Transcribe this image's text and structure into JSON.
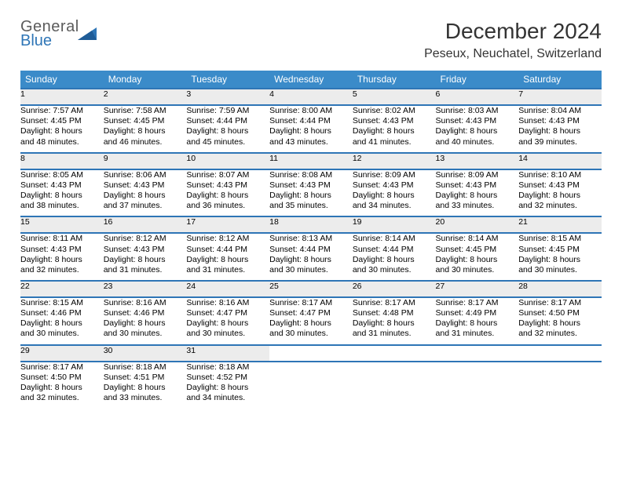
{
  "brand": {
    "line1": "General",
    "line2": "Blue"
  },
  "title": "December 2024",
  "location": "Peseux, Neuchatel, Switzerland",
  "colors": {
    "header_bg": "#3b8bc9",
    "header_text": "#ffffff",
    "row_divider": "#2e75b6",
    "daynum_bg": "#ececec",
    "text": "#000000",
    "brand_gray": "#5b5b5b",
    "brand_blue": "#2e75b6"
  },
  "day_headers": [
    "Sunday",
    "Monday",
    "Tuesday",
    "Wednesday",
    "Thursday",
    "Friday",
    "Saturday"
  ],
  "weeks": [
    [
      {
        "n": "1",
        "sr": "7:57 AM",
        "ss": "4:45 PM",
        "dl": "8 hours and 48 minutes."
      },
      {
        "n": "2",
        "sr": "7:58 AM",
        "ss": "4:45 PM",
        "dl": "8 hours and 46 minutes."
      },
      {
        "n": "3",
        "sr": "7:59 AM",
        "ss": "4:44 PM",
        "dl": "8 hours and 45 minutes."
      },
      {
        "n": "4",
        "sr": "8:00 AM",
        "ss": "4:44 PM",
        "dl": "8 hours and 43 minutes."
      },
      {
        "n": "5",
        "sr": "8:02 AM",
        "ss": "4:43 PM",
        "dl": "8 hours and 41 minutes."
      },
      {
        "n": "6",
        "sr": "8:03 AM",
        "ss": "4:43 PM",
        "dl": "8 hours and 40 minutes."
      },
      {
        "n": "7",
        "sr": "8:04 AM",
        "ss": "4:43 PM",
        "dl": "8 hours and 39 minutes."
      }
    ],
    [
      {
        "n": "8",
        "sr": "8:05 AM",
        "ss": "4:43 PM",
        "dl": "8 hours and 38 minutes."
      },
      {
        "n": "9",
        "sr": "8:06 AM",
        "ss": "4:43 PM",
        "dl": "8 hours and 37 minutes."
      },
      {
        "n": "10",
        "sr": "8:07 AM",
        "ss": "4:43 PM",
        "dl": "8 hours and 36 minutes."
      },
      {
        "n": "11",
        "sr": "8:08 AM",
        "ss": "4:43 PM",
        "dl": "8 hours and 35 minutes."
      },
      {
        "n": "12",
        "sr": "8:09 AM",
        "ss": "4:43 PM",
        "dl": "8 hours and 34 minutes."
      },
      {
        "n": "13",
        "sr": "8:09 AM",
        "ss": "4:43 PM",
        "dl": "8 hours and 33 minutes."
      },
      {
        "n": "14",
        "sr": "8:10 AM",
        "ss": "4:43 PM",
        "dl": "8 hours and 32 minutes."
      }
    ],
    [
      {
        "n": "15",
        "sr": "8:11 AM",
        "ss": "4:43 PM",
        "dl": "8 hours and 32 minutes."
      },
      {
        "n": "16",
        "sr": "8:12 AM",
        "ss": "4:43 PM",
        "dl": "8 hours and 31 minutes."
      },
      {
        "n": "17",
        "sr": "8:12 AM",
        "ss": "4:44 PM",
        "dl": "8 hours and 31 minutes."
      },
      {
        "n": "18",
        "sr": "8:13 AM",
        "ss": "4:44 PM",
        "dl": "8 hours and 30 minutes."
      },
      {
        "n": "19",
        "sr": "8:14 AM",
        "ss": "4:44 PM",
        "dl": "8 hours and 30 minutes."
      },
      {
        "n": "20",
        "sr": "8:14 AM",
        "ss": "4:45 PM",
        "dl": "8 hours and 30 minutes."
      },
      {
        "n": "21",
        "sr": "8:15 AM",
        "ss": "4:45 PM",
        "dl": "8 hours and 30 minutes."
      }
    ],
    [
      {
        "n": "22",
        "sr": "8:15 AM",
        "ss": "4:46 PM",
        "dl": "8 hours and 30 minutes."
      },
      {
        "n": "23",
        "sr": "8:16 AM",
        "ss": "4:46 PM",
        "dl": "8 hours and 30 minutes."
      },
      {
        "n": "24",
        "sr": "8:16 AM",
        "ss": "4:47 PM",
        "dl": "8 hours and 30 minutes."
      },
      {
        "n": "25",
        "sr": "8:17 AM",
        "ss": "4:47 PM",
        "dl": "8 hours and 30 minutes."
      },
      {
        "n": "26",
        "sr": "8:17 AM",
        "ss": "4:48 PM",
        "dl": "8 hours and 31 minutes."
      },
      {
        "n": "27",
        "sr": "8:17 AM",
        "ss": "4:49 PM",
        "dl": "8 hours and 31 minutes."
      },
      {
        "n": "28",
        "sr": "8:17 AM",
        "ss": "4:50 PM",
        "dl": "8 hours and 32 minutes."
      }
    ],
    [
      {
        "n": "29",
        "sr": "8:17 AM",
        "ss": "4:50 PM",
        "dl": "8 hours and 32 minutes."
      },
      {
        "n": "30",
        "sr": "8:18 AM",
        "ss": "4:51 PM",
        "dl": "8 hours and 33 minutes."
      },
      {
        "n": "31",
        "sr": "8:18 AM",
        "ss": "4:52 PM",
        "dl": "8 hours and 34 minutes."
      },
      null,
      null,
      null,
      null
    ]
  ],
  "labels": {
    "sunrise": "Sunrise: ",
    "sunset": "Sunset: ",
    "daylight": "Daylight: "
  }
}
